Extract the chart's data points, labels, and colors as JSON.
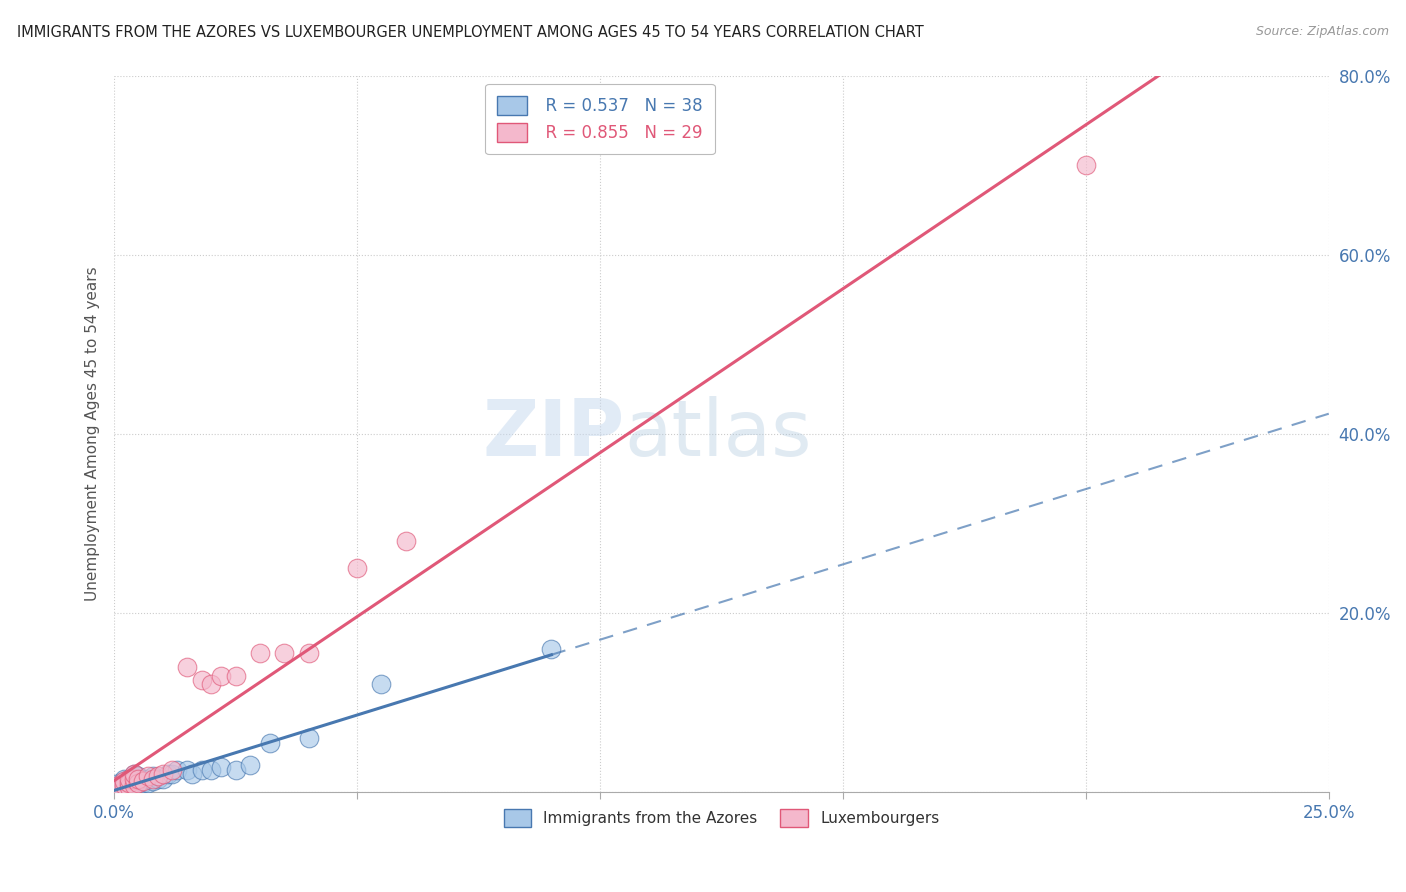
{
  "title": "IMMIGRANTS FROM THE AZORES VS LUXEMBOURGER UNEMPLOYMENT AMONG AGES 45 TO 54 YEARS CORRELATION CHART",
  "source": "Source: ZipAtlas.com",
  "ylabel": "Unemployment Among Ages 45 to 54 years",
  "xlim": [
    0.0,
    0.25
  ],
  "ylim": [
    0.0,
    0.8
  ],
  "xticks": [
    0.0,
    0.05,
    0.1,
    0.15,
    0.2,
    0.25
  ],
  "xtick_labels": [
    "0.0%",
    "",
    "",
    "",
    "",
    "25.0%"
  ],
  "ytick_positions": [
    0.0,
    0.2,
    0.4,
    0.6,
    0.8
  ],
  "ytick_labels": [
    "",
    "20.0%",
    "40.0%",
    "60.0%",
    "80.0%"
  ],
  "grid_color": "#cccccc",
  "background_color": "#ffffff",
  "color_blue": "#a8c8e8",
  "color_pink": "#f4b8cc",
  "color_blue_line": "#4878b0",
  "color_pink_line": "#e05878",
  "color_text_blue": "#4878b0",
  "color_text_pink": "#e05878",
  "azores_x": [
    0.001,
    0.001,
    0.002,
    0.002,
    0.002,
    0.002,
    0.003,
    0.003,
    0.003,
    0.003,
    0.004,
    0.004,
    0.004,
    0.005,
    0.005,
    0.005,
    0.006,
    0.006,
    0.007,
    0.007,
    0.008,
    0.008,
    0.009,
    0.01,
    0.011,
    0.012,
    0.013,
    0.015,
    0.016,
    0.018,
    0.02,
    0.022,
    0.025,
    0.028,
    0.032,
    0.04,
    0.055,
    0.09
  ],
  "azores_y": [
    0.005,
    0.01,
    0.005,
    0.008,
    0.012,
    0.015,
    0.005,
    0.01,
    0.012,
    0.015,
    0.008,
    0.01,
    0.02,
    0.008,
    0.012,
    0.018,
    0.01,
    0.015,
    0.01,
    0.015,
    0.012,
    0.018,
    0.015,
    0.015,
    0.02,
    0.02,
    0.025,
    0.025,
    0.02,
    0.025,
    0.025,
    0.028,
    0.025,
    0.03,
    0.055,
    0.06,
    0.12,
    0.16
  ],
  "lux_x": [
    0.001,
    0.001,
    0.002,
    0.002,
    0.003,
    0.003,
    0.003,
    0.004,
    0.004,
    0.004,
    0.005,
    0.005,
    0.006,
    0.007,
    0.008,
    0.009,
    0.01,
    0.012,
    0.015,
    0.018,
    0.02,
    0.022,
    0.025,
    0.03,
    0.035,
    0.04,
    0.05,
    0.06,
    0.2
  ],
  "lux_y": [
    0.005,
    0.008,
    0.008,
    0.012,
    0.005,
    0.01,
    0.015,
    0.008,
    0.015,
    0.02,
    0.01,
    0.015,
    0.012,
    0.018,
    0.015,
    0.018,
    0.02,
    0.025,
    0.14,
    0.125,
    0.12,
    0.13,
    0.13,
    0.155,
    0.155,
    0.155,
    0.25,
    0.28,
    0.7
  ],
  "blue_line_solid_end": 0.09,
  "blue_line_dash_end": 0.25,
  "pink_line_end": 0.25
}
